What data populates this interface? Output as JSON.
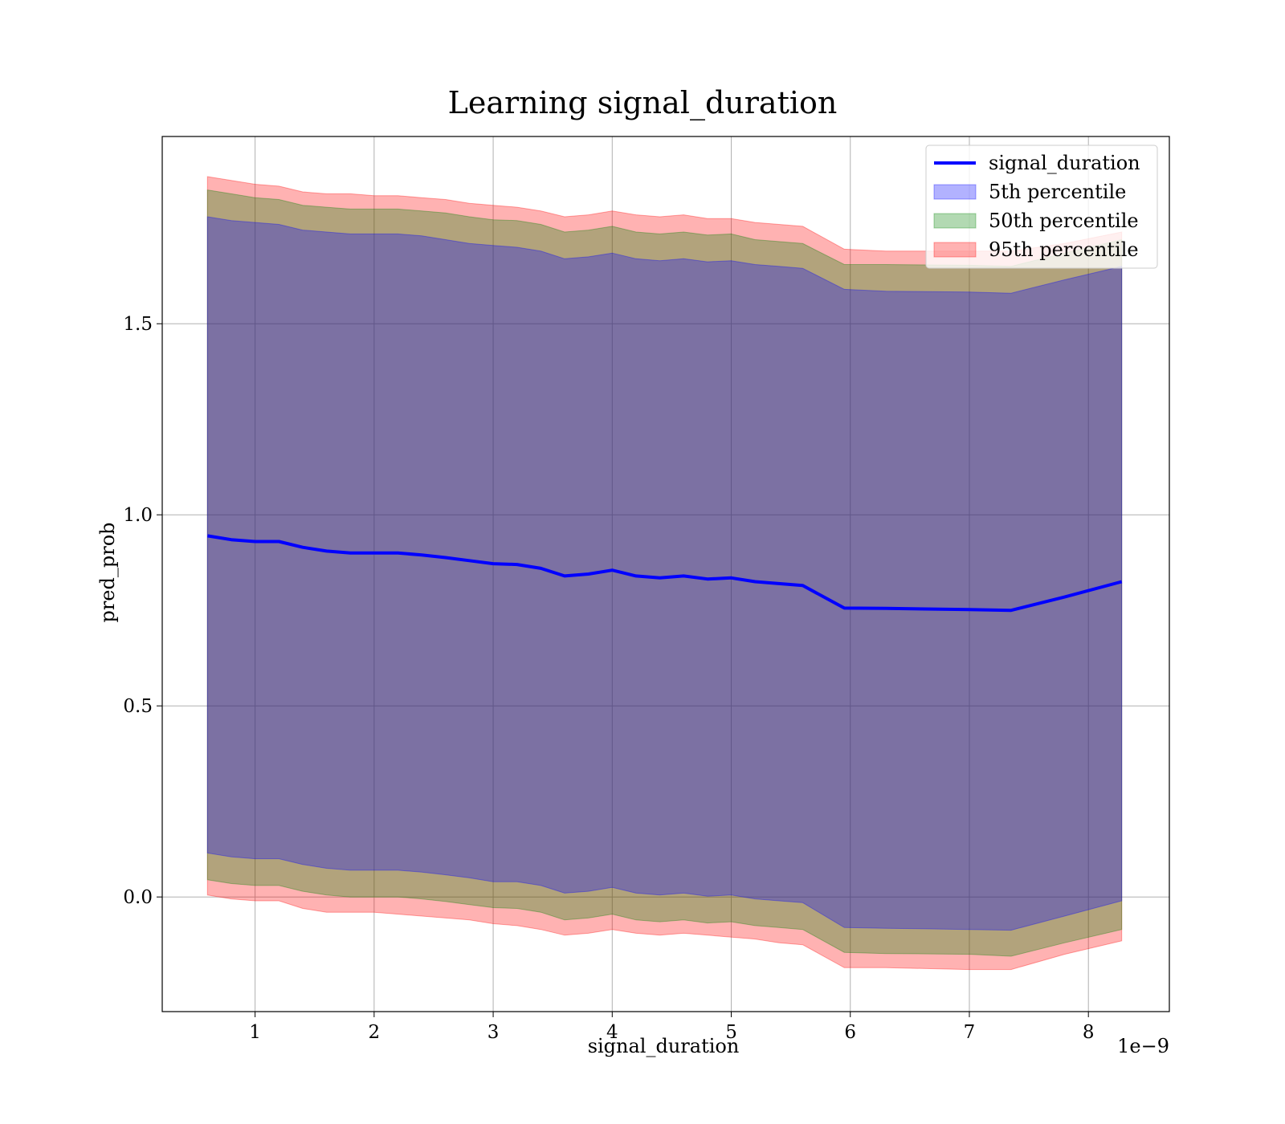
{
  "chart_data": {
    "type": "area",
    "title": "Learning signal_duration",
    "xlabel": "signal_duration",
    "ylabel": "pred_prob",
    "x_offset_text": "1e−9",
    "xlim": [
      0.22,
      8.68
    ],
    "ylim": [
      -0.3,
      1.99
    ],
    "xticks": [
      1,
      2,
      3,
      4,
      5,
      6,
      7,
      8
    ],
    "xtick_labels": [
      "1",
      "2",
      "3",
      "4",
      "5",
      "6",
      "7",
      "8"
    ],
    "yticks": [
      0.0,
      0.5,
      1.0,
      1.5
    ],
    "ytick_labels": [
      "0.0",
      "0.5",
      "1.0",
      "1.5"
    ],
    "grid": true,
    "legend_position": "top-right",
    "x": [
      0.6,
      0.8,
      1.0,
      1.2,
      1.4,
      1.6,
      1.8,
      2.0,
      2.2,
      2.4,
      2.6,
      2.8,
      3.0,
      3.2,
      3.4,
      3.6,
      3.8,
      4.0,
      4.2,
      4.4,
      4.6,
      4.8,
      5.0,
      5.2,
      5.4,
      5.6,
      5.95,
      6.3,
      7.0,
      7.35,
      7.8,
      8.28
    ],
    "line": {
      "name": "signal_duration",
      "color": "#0000ff",
      "values": [
        0.945,
        0.935,
        0.93,
        0.93,
        0.915,
        0.905,
        0.9,
        0.9,
        0.9,
        0.895,
        0.888,
        0.88,
        0.872,
        0.87,
        0.86,
        0.84,
        0.845,
        0.855,
        0.84,
        0.835,
        0.84,
        0.832,
        0.835,
        0.825,
        0.82,
        0.815,
        0.756,
        0.755,
        0.752,
        0.75,
        0.785,
        0.825
      ]
    },
    "bands": [
      {
        "name": "95th percentile",
        "color": "#ff0000",
        "opacity": 0.3,
        "upper": [
          1.885,
          1.875,
          1.865,
          1.86,
          1.845,
          1.84,
          1.84,
          1.835,
          1.835,
          1.83,
          1.825,
          1.815,
          1.81,
          1.805,
          1.795,
          1.78,
          1.785,
          1.795,
          1.785,
          1.78,
          1.785,
          1.775,
          1.775,
          1.765,
          1.76,
          1.755,
          1.695,
          1.69,
          1.69,
          1.69,
          1.71,
          1.74
        ],
        "lower": [
          0.005,
          -0.005,
          -0.01,
          -0.01,
          -0.03,
          -0.04,
          -0.04,
          -0.04,
          -0.045,
          -0.05,
          -0.055,
          -0.06,
          -0.07,
          -0.075,
          -0.085,
          -0.1,
          -0.095,
          -0.085,
          -0.095,
          -0.1,
          -0.095,
          -0.1,
          -0.105,
          -0.11,
          -0.12,
          -0.125,
          -0.185,
          -0.185,
          -0.19,
          -0.19,
          -0.15,
          -0.115
        ]
      },
      {
        "name": "50th percentile",
        "color": "#008000",
        "opacity": 0.3,
        "upper": [
          1.85,
          1.84,
          1.83,
          1.825,
          1.81,
          1.805,
          1.8,
          1.8,
          1.8,
          1.795,
          1.79,
          1.78,
          1.772,
          1.77,
          1.76,
          1.74,
          1.745,
          1.755,
          1.74,
          1.735,
          1.74,
          1.732,
          1.735,
          1.72,
          1.715,
          1.71,
          1.655,
          1.655,
          1.653,
          1.65,
          1.685,
          1.72
        ],
        "lower": [
          0.045,
          0.035,
          0.03,
          0.03,
          0.015,
          0.005,
          0.0,
          0.0,
          0.0,
          -0.005,
          -0.012,
          -0.02,
          -0.028,
          -0.03,
          -0.04,
          -0.06,
          -0.055,
          -0.045,
          -0.06,
          -0.065,
          -0.06,
          -0.068,
          -0.065,
          -0.075,
          -0.08,
          -0.085,
          -0.145,
          -0.148,
          -0.15,
          -0.155,
          -0.12,
          -0.085
        ]
      },
      {
        "name": "5th percentile",
        "color": "#0000ff",
        "opacity": 0.3,
        "upper": [
          1.78,
          1.77,
          1.765,
          1.76,
          1.745,
          1.74,
          1.735,
          1.735,
          1.735,
          1.73,
          1.72,
          1.71,
          1.705,
          1.7,
          1.69,
          1.67,
          1.675,
          1.685,
          1.67,
          1.665,
          1.67,
          1.662,
          1.665,
          1.655,
          1.65,
          1.645,
          1.59,
          1.585,
          1.583,
          1.58,
          1.615,
          1.65
        ],
        "lower": [
          0.115,
          0.105,
          0.1,
          0.1,
          0.085,
          0.075,
          0.07,
          0.07,
          0.07,
          0.065,
          0.058,
          0.05,
          0.04,
          0.04,
          0.03,
          0.01,
          0.015,
          0.025,
          0.01,
          0.005,
          0.01,
          0.002,
          0.005,
          -0.005,
          -0.01,
          -0.015,
          -0.08,
          -0.082,
          -0.085,
          -0.087,
          -0.05,
          -0.01
        ]
      }
    ],
    "legend": [
      {
        "label": "signal_duration",
        "kind": "line",
        "color": "#0000ff"
      },
      {
        "label": "5th percentile",
        "kind": "patch",
        "color": "#0000ff"
      },
      {
        "label": "50th percentile",
        "kind": "patch",
        "color": "#008000"
      },
      {
        "label": "95th percentile",
        "kind": "patch",
        "color": "#ff0000"
      }
    ]
  }
}
